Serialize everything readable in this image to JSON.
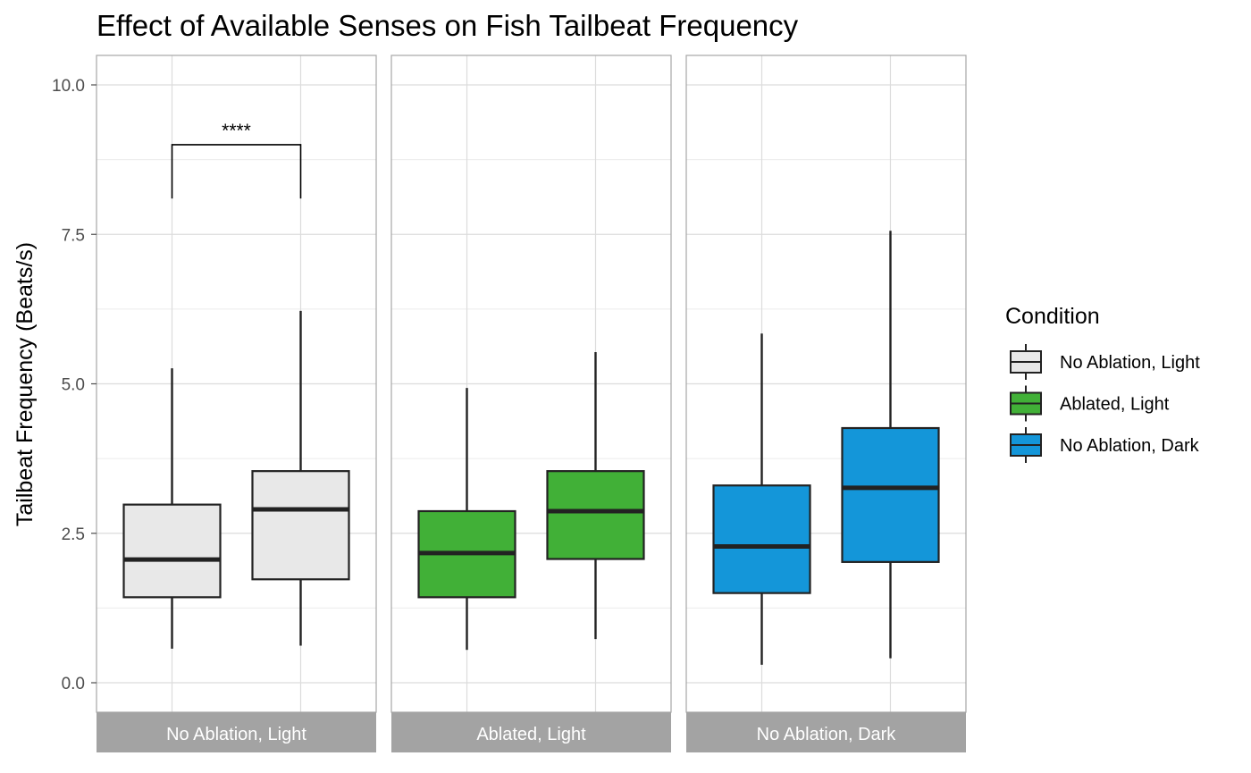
{
  "chart_data": {
    "type": "box",
    "title": "Effect of Available Senses on Fish Tailbeat Frequency",
    "xlabel": "",
    "ylabel": "Tailbeat Frequency (Beats/s)",
    "ylim": [
      -0.48,
      10.5
    ],
    "y_ticks": [
      "0.0",
      "2.5",
      "5.0",
      "7.5",
      "10.0"
    ],
    "y_tick_values": [
      0,
      2.5,
      5,
      7.5,
      10
    ],
    "grid": true,
    "legend": {
      "title": "Condition",
      "placement": "right",
      "entries": [
        {
          "label": "No Ablation, Light",
          "color": "#e8e8e8"
        },
        {
          "label": "Ablated, Light",
          "color": "#41b037"
        },
        {
          "label": "No Ablation, Dark",
          "color": "#1496d9"
        }
      ]
    },
    "panels": [
      {
        "strip": "No Ablation, Light",
        "color": "#e8e8e8",
        "boxes": [
          {
            "min": 0.57,
            "q1": 1.43,
            "median": 2.06,
            "q3": 2.98,
            "max": 5.26
          },
          {
            "min": 0.62,
            "q1": 1.73,
            "median": 2.9,
            "q3": 3.54,
            "max": 6.22
          }
        ],
        "significance": {
          "label": "****",
          "y": 9.0,
          "tip": 8.1
        }
      },
      {
        "strip": "Ablated, Light",
        "color": "#41b037",
        "boxes": [
          {
            "min": 0.55,
            "q1": 1.43,
            "median": 2.17,
            "q3": 2.87,
            "max": 4.93
          },
          {
            "min": 0.73,
            "q1": 2.07,
            "median": 2.87,
            "q3": 3.54,
            "max": 5.53
          }
        ]
      },
      {
        "strip": "No Ablation, Dark",
        "color": "#1496d9",
        "boxes": [
          {
            "min": 0.3,
            "q1": 1.5,
            "median": 2.28,
            "q3": 3.3,
            "max": 5.84
          },
          {
            "min": 0.41,
            "q1": 2.02,
            "median": 3.26,
            "q3": 4.26,
            "max": 7.56
          }
        ]
      }
    ]
  }
}
